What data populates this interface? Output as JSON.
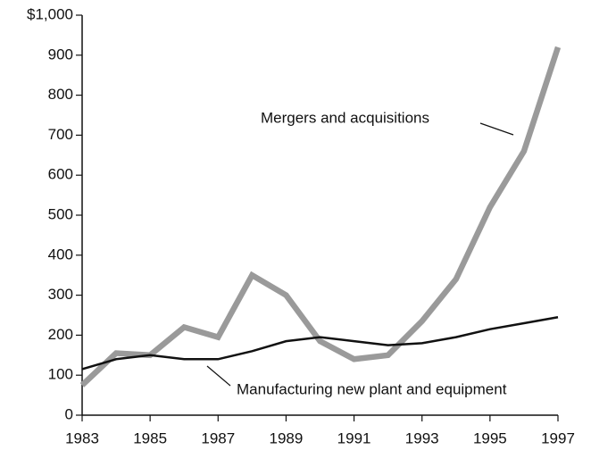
{
  "chart_data": {
    "type": "line",
    "x": [
      1983,
      1984,
      1985,
      1986,
      1987,
      1988,
      1989,
      1990,
      1991,
      1992,
      1993,
      1994,
      1995,
      1996,
      1997
    ],
    "series": [
      {
        "name": "Mergers and acquisitions",
        "color": "#9a9a9a",
        "values": [
          75,
          155,
          150,
          220,
          195,
          350,
          300,
          185,
          140,
          150,
          235,
          340,
          520,
          660,
          920
        ]
      },
      {
        "name": "Manufacturing new plant and equipment",
        "color": "#111111",
        "values": [
          115,
          140,
          150,
          140,
          140,
          160,
          185,
          195,
          185,
          175,
          180,
          195,
          215,
          230,
          245
        ]
      }
    ],
    "xlim": [
      1983,
      1997
    ],
    "xticks": [
      1983,
      1985,
      1987,
      1989,
      1991,
      1993,
      1995,
      1997
    ],
    "ylim": [
      0,
      1000
    ],
    "yticks": [
      0,
      100,
      200,
      300,
      400,
      500,
      600,
      700,
      800,
      900,
      {
        "value": 1000,
        "label": "$1,000"
      }
    ],
    "grid": false
  }
}
